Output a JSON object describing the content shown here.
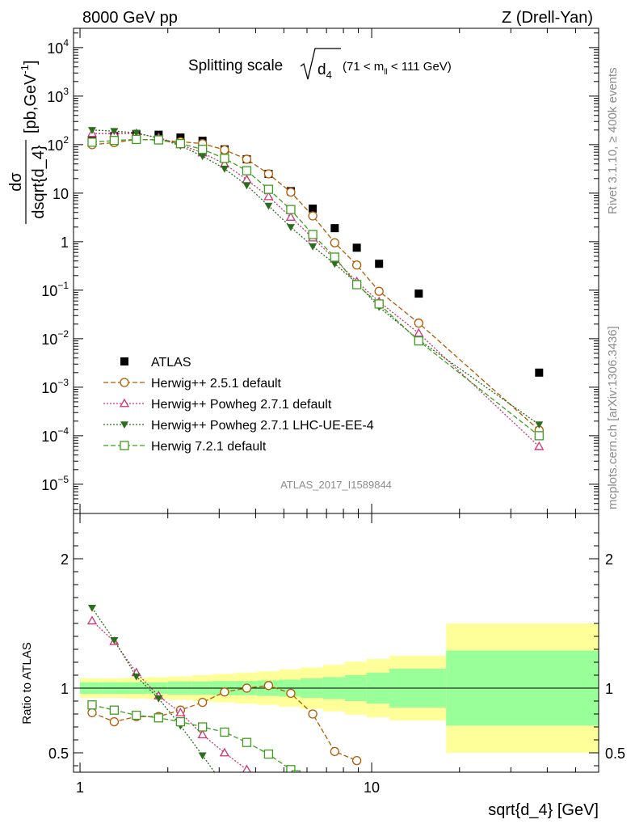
{
  "header": {
    "left": "8000 GeV pp",
    "right": "Z (Drell-Yan)"
  },
  "side": {
    "rivet": "Rivet 3.1.10, ≥ 400k events",
    "mcplots": "mcplots.cern.ch [arXiv:1306.3436]"
  },
  "chart_data": [
    {
      "type": "scatter",
      "title": "Splitting scale √d₄ (71 < mₗₗ < 111 GeV)",
      "title_main": "Splitting scale",
      "title_sym": "d",
      "title_sub": "4",
      "title_range": "(71 < m",
      "title_range_sub": "ll",
      "title_range_end": " < 111 GeV)",
      "xlabel": "sqrt{d_4} [GeV]",
      "ylabel": "dσ / dsqrt{d_4} [pb,GeV⁻¹]",
      "ylabel_num": "dσ",
      "ylabel_den": "dsqrt{d_4}",
      "ylabel_unit": "[pb,GeV",
      "ylabel_exp": "-1",
      "ylabel_close": "]",
      "xscale": "log",
      "yscale": "log",
      "xlim": [
        0.95,
        60
      ],
      "ylim": [
        2.5e-06,
        25000
      ],
      "xticks": [
        {
          "v": 1,
          "label": "1"
        },
        {
          "v": 10,
          "label": "10"
        }
      ],
      "yticks": [
        {
          "v": 10000,
          "base": "10",
          "exp": "4"
        },
        {
          "v": 1000,
          "base": "10",
          "exp": "3"
        },
        {
          "v": 100,
          "base": "10",
          "exp": "2"
        },
        {
          "v": 10,
          "base": "10",
          "exp": ""
        },
        {
          "v": 1,
          "base": "1",
          "exp": ""
        },
        {
          "v": 0.1,
          "base": "10",
          "exp": "−1"
        },
        {
          "v": 0.01,
          "base": "10",
          "exp": "−2"
        },
        {
          "v": 0.001,
          "base": "10",
          "exp": "−3"
        },
        {
          "v": 0.0001,
          "base": "10",
          "exp": "−4"
        },
        {
          "v": 1e-05,
          "base": "10",
          "exp": "−5"
        }
      ],
      "watermark": "ATLAS_2017_I1589844",
      "legend_position": "lower-left",
      "series": [
        {
          "name": "ATLAS",
          "style": "data",
          "color": "#000000",
          "marker": "square",
          "x": [
            1.1,
            1.31,
            1.56,
            1.86,
            2.21,
            2.63,
            3.13,
            3.73,
            4.43,
            5.28,
            6.28,
            7.47,
            8.89,
            10.6,
            14.5,
            37.5
          ],
          "y": [
            125,
            150,
            165,
            160,
            140,
            120,
            80,
            50,
            25,
            11,
            4.8,
            1.9,
            0.75,
            0.35,
            0.085,
            0.002
          ]
        },
        {
          "name": "Herwig++ 2.5.1 default",
          "style": "dashed",
          "color": "#b35900",
          "marker": "circle",
          "x": [
            1.1,
            1.31,
            1.56,
            1.86,
            2.21,
            2.63,
            3.13,
            3.73,
            4.43,
            5.28,
            6.28,
            7.47,
            8.89,
            10.6,
            14.5,
            37.5
          ],
          "y": [
            100,
            110,
            128,
            125,
            115,
            105,
            78,
            50,
            25,
            10.5,
            3.4,
            0.95,
            0.33,
            0.095,
            0.021,
            0.00013
          ]
        },
        {
          "name": "Herwig++ Powheg 2.7.1 default",
          "style": "dotted",
          "color": "#cc3377",
          "marker": "triangle-up",
          "x": [
            1.1,
            1.31,
            1.56,
            1.86,
            2.21,
            2.63,
            3.13,
            3.73,
            4.43,
            5.28,
            6.28,
            7.47,
            8.89,
            10.6,
            14.5,
            37.5
          ],
          "y": [
            170,
            170,
            170,
            140,
            100,
            68,
            40,
            19,
            8.5,
            3.2,
            1.2,
            0.44,
            0.15,
            0.058,
            0.013,
            6e-05
          ]
        },
        {
          "name": "Herwig++ Powheg 2.7.1 LHC-UE-EE-4",
          "style": "dotted",
          "color": "#2d6e1e",
          "marker": "triangle-down",
          "x": [
            1.1,
            1.31,
            1.56,
            1.86,
            2.21,
            2.63,
            3.13,
            3.73,
            4.43,
            5.28,
            6.28,
            7.47,
            8.89,
            10.6,
            14.5,
            37.5
          ],
          "y": [
            200,
            190,
            175,
            135,
            95,
            58,
            32,
            14.5,
            5.5,
            2.0,
            0.8,
            0.35,
            0.14,
            0.045,
            0.0095,
            0.00017
          ]
        },
        {
          "name": "Herwig 7.2.1 default",
          "style": "dashed",
          "color": "#3d9e1e",
          "marker": "square-open",
          "x": [
            1.1,
            1.31,
            1.56,
            1.86,
            2.21,
            2.63,
            3.13,
            3.73,
            4.43,
            5.28,
            6.28,
            7.47,
            8.89,
            10.6,
            14.5,
            37.5
          ],
          "y": [
            112,
            122,
            128,
            125,
            105,
            80,
            52,
            29,
            12,
            4.6,
            1.4,
            0.48,
            0.13,
            0.052,
            0.009,
            0.0001
          ]
        }
      ]
    },
    {
      "type": "line",
      "ylabel": "Ratio to ATLAS",
      "xscale": "log",
      "xlim": [
        0.95,
        60
      ],
      "ylim": [
        0.35,
        2.35
      ],
      "yticks": [
        {
          "v": 0.5,
          "label": "0.5"
        },
        {
          "v": 1,
          "label": "1"
        },
        {
          "v": 2,
          "label": "2"
        }
      ],
      "bins": [
        1.0,
        1.2,
        1.42,
        1.7,
        2.0,
        2.42,
        2.85,
        3.4,
        4.05,
        4.8,
        5.7,
        6.8,
        8.1,
        9.6,
        11.5,
        18.0,
        60.0
      ],
      "band_inner": [
        0.045,
        0.045,
        0.045,
        0.045,
        0.05,
        0.05,
        0.055,
        0.055,
        0.06,
        0.065,
        0.075,
        0.085,
        0.1,
        0.12,
        0.15,
        0.29
      ],
      "band_outer": [
        0.075,
        0.075,
        0.08,
        0.085,
        0.09,
        0.1,
        0.11,
        0.12,
        0.13,
        0.145,
        0.16,
        0.18,
        0.205,
        0.225,
        0.25,
        0.5
      ],
      "band_inner_color": "#99ff99",
      "band_outer_color": "#ffff99",
      "series": [
        {
          "name": "Herwig++ 2.5.1 default",
          "style": "dashed",
          "color": "#b35900",
          "marker": "circle",
          "x": [
            1.1,
            1.31,
            1.56,
            1.86,
            2.21,
            2.63,
            3.13,
            3.73,
            4.43,
            5.28,
            6.28,
            7.47,
            8.89
          ],
          "y": [
            0.81,
            0.74,
            0.78,
            0.78,
            0.83,
            0.89,
            0.97,
            1.0,
            1.02,
            0.96,
            0.8,
            0.51,
            0.44
          ]
        },
        {
          "name": "Herwig++ Powheg 2.7.1 default",
          "style": "dotted",
          "color": "#cc3377",
          "marker": "triangle-up",
          "x": [
            1.1,
            1.31,
            1.56,
            1.86,
            2.21,
            2.63,
            3.13,
            3.73,
            4.0
          ],
          "y": [
            1.52,
            1.36,
            1.12,
            0.94,
            0.81,
            0.64,
            0.5,
            0.37,
            0.32
          ]
        },
        {
          "name": "Herwig++ Powheg 2.7.1 LHC-UE-EE-4",
          "style": "dotted",
          "color": "#2d6e1e",
          "marker": "triangle-down",
          "x": [
            1.1,
            1.31,
            1.56,
            1.86,
            2.21,
            2.63,
            3.0
          ],
          "y": [
            1.62,
            1.37,
            1.09,
            0.92,
            0.71,
            0.48,
            0.3
          ]
        },
        {
          "name": "Herwig 7.2.1 default",
          "style": "dashed",
          "color": "#3d9e1e",
          "marker": "square-open",
          "x": [
            1.1,
            1.31,
            1.56,
            1.86,
            2.21,
            2.63,
            3.13,
            3.73,
            4.43,
            5.28,
            5.5
          ],
          "y": [
            0.87,
            0.83,
            0.79,
            0.77,
            0.74,
            0.7,
            0.66,
            0.58,
            0.49,
            0.37,
            0.33
          ]
        }
      ]
    }
  ]
}
